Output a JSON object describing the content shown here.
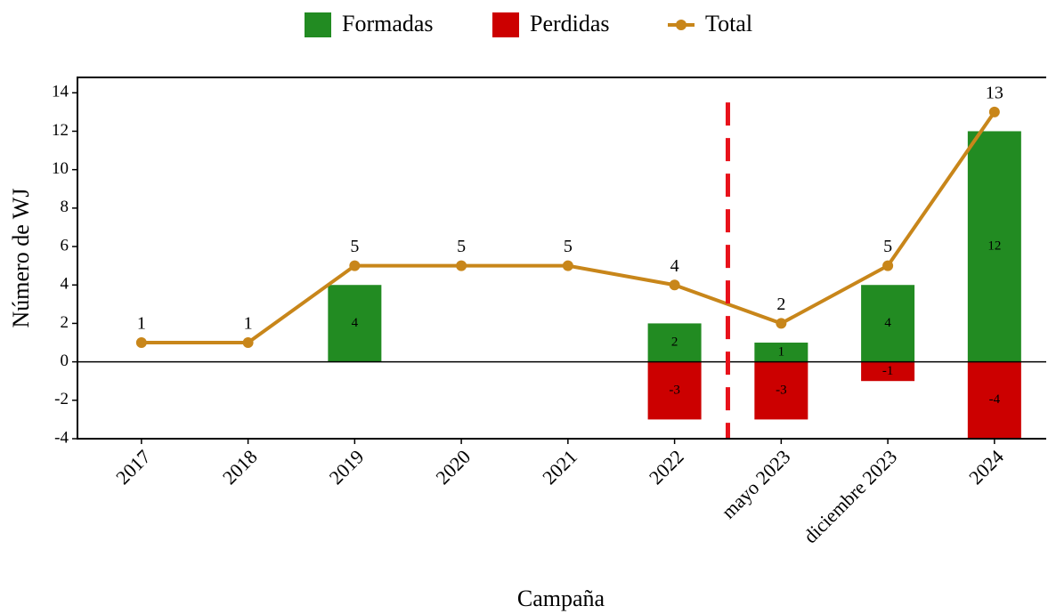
{
  "chart_data": {
    "type": "bar",
    "x_label": "Campaña",
    "y_label": "Número de WJ",
    "categories": [
      "2017",
      "2018",
      "2019",
      "2020",
      "2021",
      "2022",
      "mayo 2023",
      "diciembre  2023",
      "2024"
    ],
    "series": [
      {
        "name": "Formadas",
        "type": "bar",
        "color": "#228b22",
        "values": [
          null,
          null,
          4,
          null,
          null,
          2,
          1,
          4,
          12
        ]
      },
      {
        "name": "Perdidas",
        "type": "bar",
        "color": "#cc0000",
        "values": [
          null,
          null,
          null,
          null,
          null,
          -3,
          -3,
          -1,
          -4
        ]
      },
      {
        "name": "Total",
        "type": "line",
        "color": "#c8861a",
        "values": [
          1,
          1,
          5,
          5,
          5,
          4,
          2,
          5,
          13
        ]
      }
    ],
    "ylim": [
      -4,
      14.8
    ],
    "yticks": [
      -4,
      -2,
      0,
      2,
      4,
      6,
      8,
      10,
      12,
      14
    ],
    "dashed_line_after": "2022",
    "dashed_line_color": "#e8111a",
    "legend": "top"
  }
}
